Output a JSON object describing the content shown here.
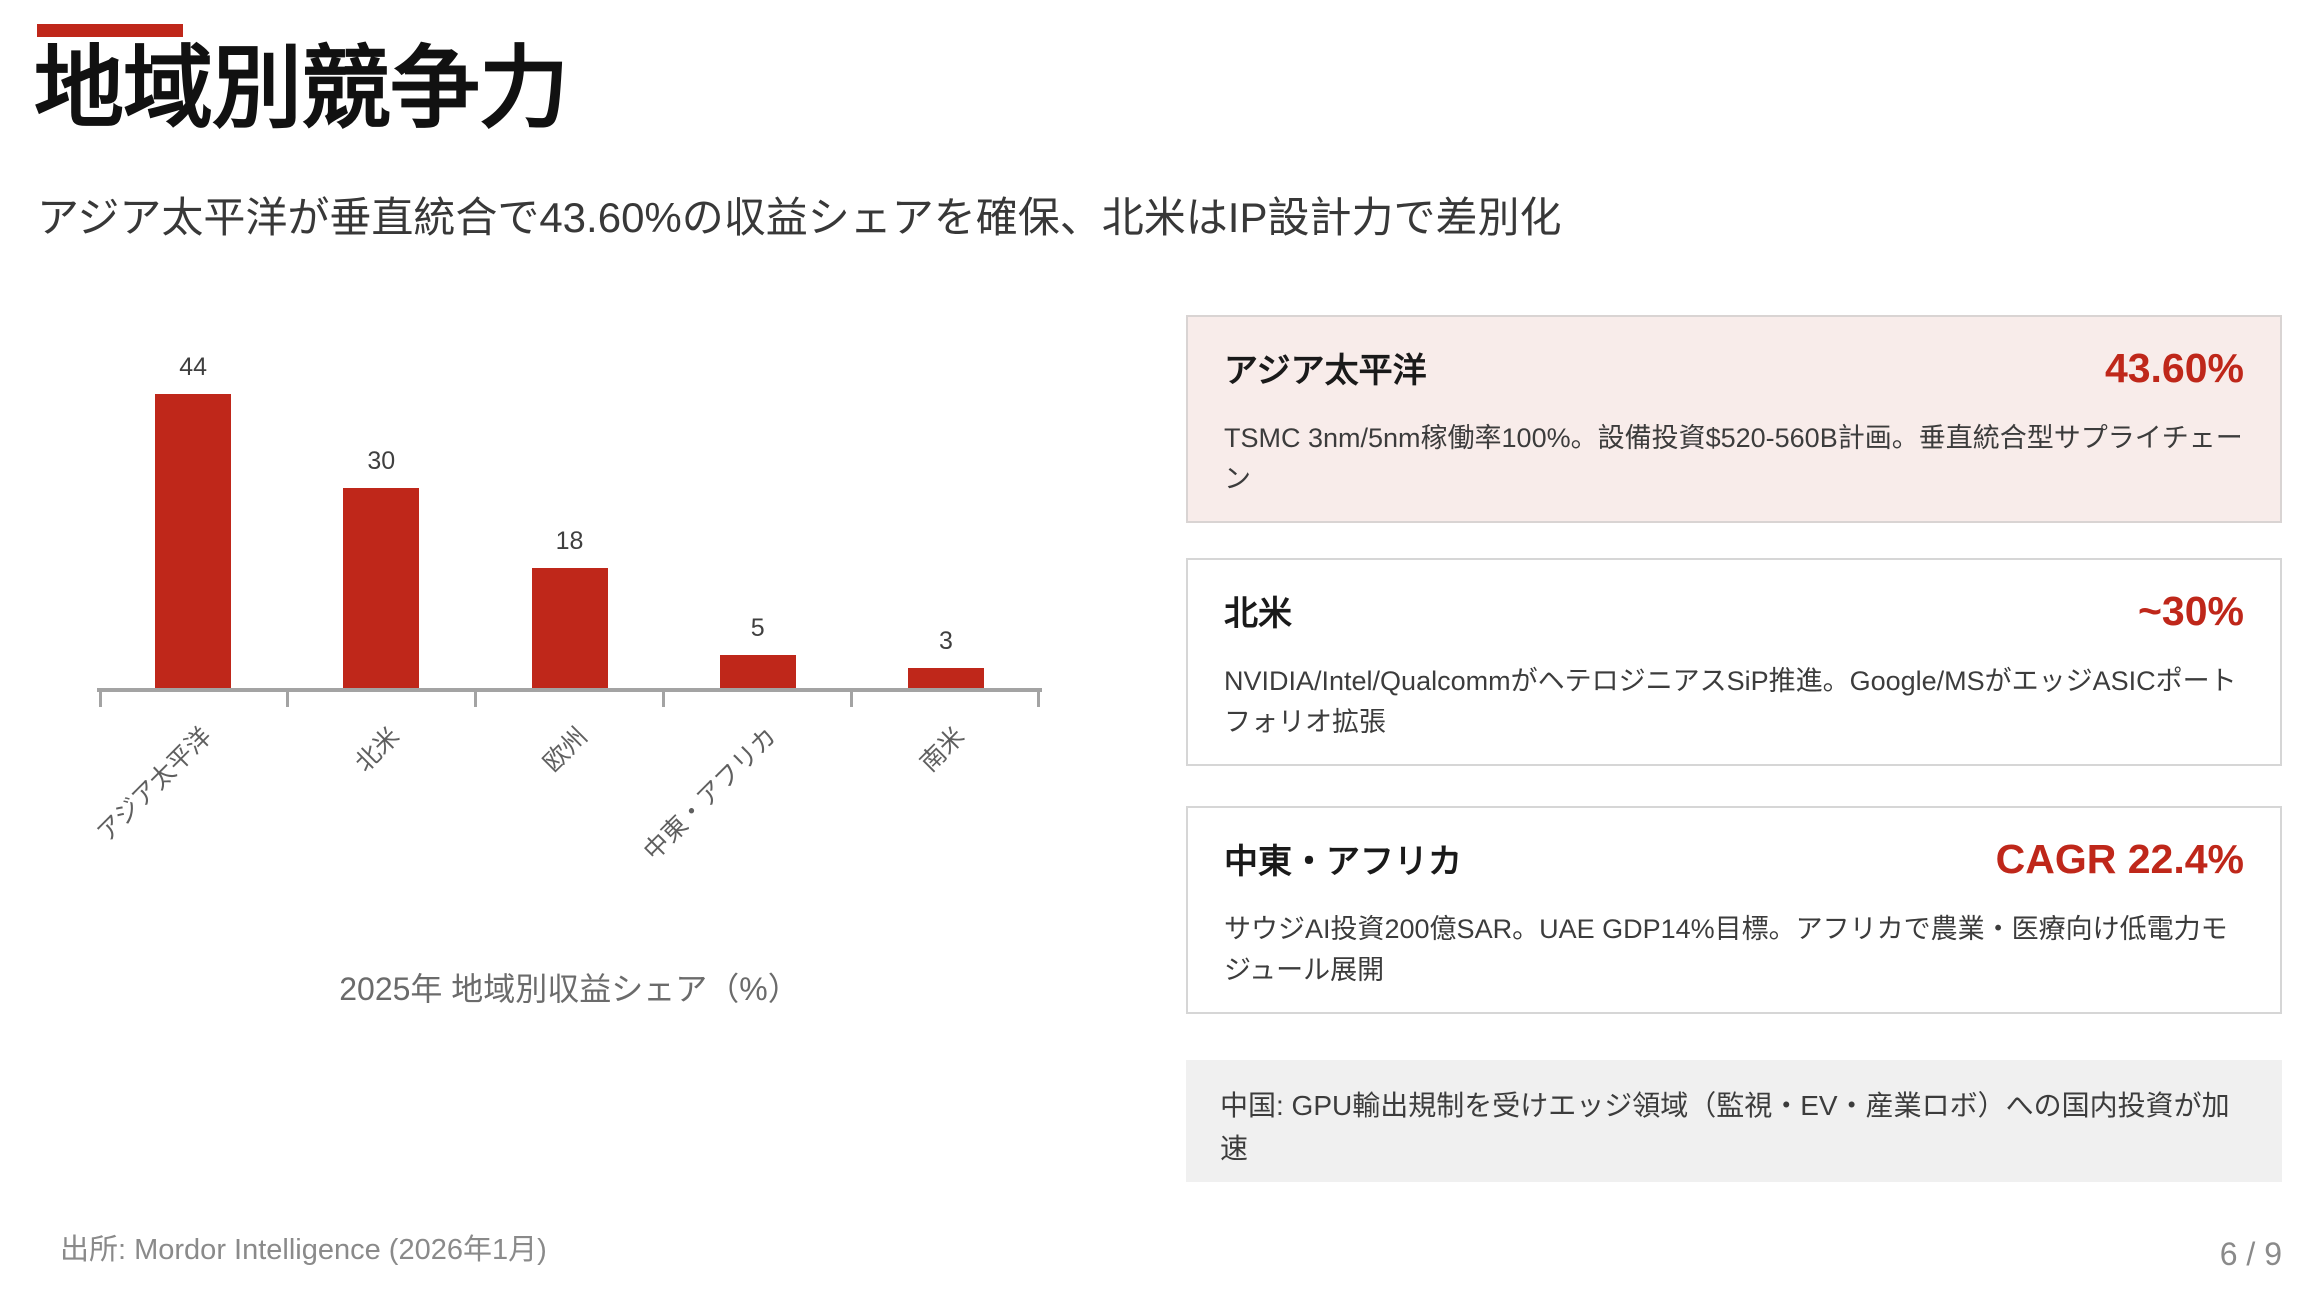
{
  "header": {
    "title": "地域別競争力",
    "subtitle": "アジア太平洋が垂直統合で43.60%の収益シェアを確保、北米はIP設計力で差別化"
  },
  "chart_data": {
    "type": "bar",
    "title": "2025年 地域別収益シェア（%）",
    "categories": [
      "アジア太平洋",
      "北米",
      "欧州",
      "中東・アフリカ",
      "南米"
    ],
    "values": [
      44,
      30,
      18,
      5,
      3
    ],
    "value_labels": [
      "44",
      "30",
      "18",
      "5",
      "3"
    ],
    "unit": "%",
    "bar_color": "#BF271A",
    "ylim": [
      0,
      48
    ],
    "grid": false,
    "legend": "none",
    "x_tick_rotation": 45
  },
  "cards": [
    {
      "title": "アジア太平洋",
      "value": "43.60%",
      "body": "TSMC 3nm/5nm稼働率100%。設備投資$520-560B計画。垂直統合型サプライチェーン",
      "highlight": true
    },
    {
      "title": "北米",
      "value": "~30%",
      "body": "NVIDIA/Intel/QualcommがヘテロジニアスSiP推進。Google/MSがエッジASICポートフォリオ拡張",
      "highlight": false
    },
    {
      "title": "中東・アフリカ",
      "value": "CAGR 22.4%",
      "body": "サウジAI投資200億SAR。UAE GDP14%目標。アフリカで農業・医療向け低電力モジュール展開",
      "highlight": false
    }
  ],
  "note": {
    "text": "中国: GPU輸出規制を受けエッジ領域（監視・EV・産業ロボ）への国内投資が加速"
  },
  "footer": {
    "source": "出所: Mordor Intelligence (2026年1月)",
    "page": "6 / 9"
  },
  "colors": {
    "accent": "#BF271A",
    "highlight_bg": "#F8ECEA",
    "card_border": "#D6D6D6",
    "note_bg": "#F0F0F0",
    "axis_gray": "#A3A3A3"
  }
}
